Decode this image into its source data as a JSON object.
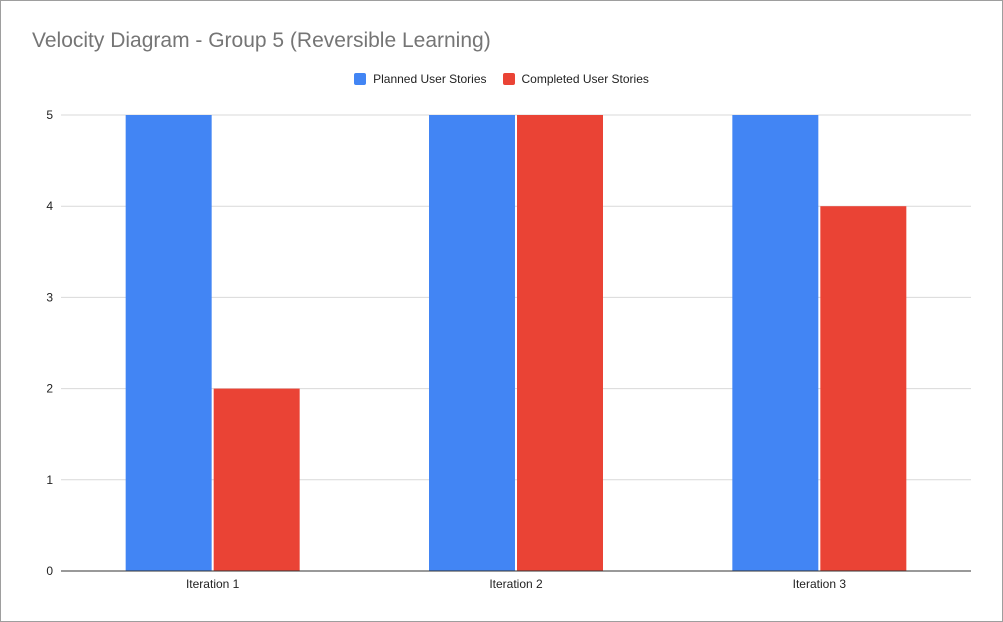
{
  "chart_data": {
    "type": "bar",
    "title": "Velocity Diagram - Group 5 (Reversible Learning)",
    "xlabel": "",
    "ylabel": "",
    "categories": [
      "Iteration 1",
      "Iteration 2",
      "Iteration 3"
    ],
    "series": [
      {
        "name": "Planned User Stories",
        "values": [
          5,
          5,
          5
        ],
        "color": "#4285f4"
      },
      {
        "name": "Completed User Stories",
        "values": [
          2,
          5,
          4
        ],
        "color": "#ea4335"
      }
    ],
    "ylim": [
      0,
      5
    ],
    "yticks": [
      "0",
      "1",
      "2",
      "3",
      "4",
      "5"
    ],
    "grid": true,
    "legend_position": "top-center"
  }
}
